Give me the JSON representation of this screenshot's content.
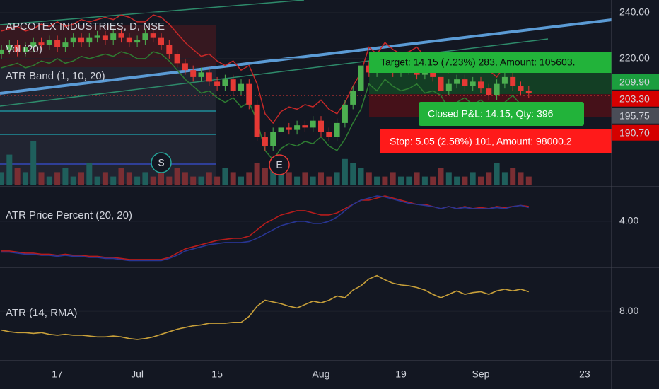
{
  "chart_data": [
    {
      "type": "candlestick",
      "title": "APCOTEX INDUSTRIES, D, NSE",
      "indicators": [
        "Vol (20)",
        "ATR Band (1, 10, 20)"
      ],
      "categories": [
        null,
        null,
        null,
        null,
        null,
        null,
        null,
        "17",
        null,
        null,
        null,
        null,
        null,
        null,
        null,
        null,
        null,
        "Jul",
        null,
        null,
        null,
        null,
        null,
        null,
        null,
        null,
        null,
        "15",
        null,
        null,
        null,
        null,
        null,
        null,
        null,
        null,
        null,
        null,
        null,
        null,
        "Aug",
        null,
        null,
        null,
        null,
        null,
        null,
        null,
        null,
        null,
        "19",
        null,
        null,
        null,
        null,
        null,
        null,
        null,
        null,
        null,
        "Sep",
        null,
        null,
        null,
        null,
        null,
        null,
        null,
        null,
        null,
        null,
        null,
        null,
        "23"
      ],
      "open": [
        222,
        224,
        226,
        223,
        225,
        227,
        226,
        228,
        225,
        227,
        229,
        227,
        229,
        230,
        228,
        231,
        229,
        227,
        228,
        231,
        229,
        226,
        222,
        218,
        215,
        212,
        214,
        210,
        208,
        211,
        206,
        209,
        200,
        186,
        182,
        188,
        190,
        189,
        191,
        190,
        193,
        188,
        186,
        192,
        200,
        206,
        217,
        214,
        219,
        216,
        214,
        215,
        217,
        213,
        214,
        212,
        206,
        209,
        211,
        208,
        210,
        207,
        204,
        209,
        212,
        208,
        206,
        null,
        null,
        null,
        null,
        null,
        null,
        null
      ],
      "high": [
        226,
        228,
        228,
        227,
        229,
        229,
        230,
        230,
        229,
        231,
        231,
        231,
        232,
        232,
        233,
        233,
        231,
        230,
        233,
        233,
        231,
        228,
        224,
        220,
        217,
        216,
        216,
        212,
        213,
        213,
        211,
        211,
        202,
        188,
        190,
        192,
        192,
        193,
        193,
        195,
        195,
        190,
        194,
        202,
        208,
        219,
        219,
        221,
        221,
        218,
        217,
        219,
        219,
        216,
        216,
        214,
        211,
        213,
        213,
        212,
        212,
        209,
        211,
        214,
        214,
        210,
        208,
        null,
        null,
        null,
        null,
        null,
        null,
        null
      ],
      "low": [
        220,
        222,
        221,
        221,
        223,
        224,
        224,
        223,
        223,
        225,
        225,
        225,
        227,
        226,
        226,
        227,
        225,
        225,
        226,
        227,
        224,
        220,
        216,
        213,
        210,
        210,
        208,
        206,
        206,
        204,
        204,
        198,
        184,
        180,
        180,
        186,
        187,
        187,
        188,
        188,
        186,
        184,
        184,
        190,
        198,
        204,
        212,
        212,
        214,
        212,
        212,
        213,
        211,
        211,
        210,
        204,
        204,
        207,
        206,
        206,
        205,
        202,
        202,
        207,
        206,
        204,
        203,
        null,
        null,
        null,
        null,
        null,
        null,
        null
      ],
      "close": [
        224,
        226,
        223,
        225,
        227,
        226,
        228,
        225,
        227,
        229,
        227,
        229,
        230,
        228,
        231,
        229,
        227,
        228,
        231,
        229,
        226,
        222,
        218,
        215,
        212,
        214,
        210,
        208,
        211,
        206,
        209,
        200,
        186,
        182,
        188,
        190,
        189,
        191,
        190,
        193,
        188,
        186,
        192,
        200,
        206,
        217,
        214,
        219,
        216,
        214,
        215,
        217,
        213,
        214,
        212,
        206,
        209,
        211,
        208,
        210,
        207,
        204,
        209,
        212,
        208,
        206,
        205,
        null,
        null,
        null,
        null,
        null,
        null,
        null
      ],
      "volume": [
        3,
        7,
        4,
        3,
        10,
        3,
        2,
        3,
        4,
        2,
        3,
        5,
        2,
        3,
        2,
        4,
        3,
        2,
        3,
        2,
        3,
        2,
        4,
        3,
        2,
        2,
        3,
        2,
        4,
        3,
        2,
        3,
        5,
        4,
        5,
        3,
        3,
        2,
        3,
        2,
        3,
        2,
        3,
        6,
        5,
        4,
        3,
        2,
        2,
        3,
        2,
        2,
        3,
        2,
        2,
        4,
        3,
        2,
        2,
        3,
        2,
        3,
        5,
        3,
        4,
        3,
        2,
        null,
        null,
        null,
        null,
        null,
        null,
        null
      ],
      "vlim": [
        0,
        10
      ],
      "band_upper": [
        232,
        233,
        234,
        232,
        233,
        235,
        234,
        236,
        234,
        235,
        237,
        236,
        237,
        238,
        237,
        239,
        238,
        236,
        236,
        239,
        238,
        235,
        231,
        227,
        224,
        221,
        222,
        219,
        217,
        219,
        215,
        217,
        209,
        196,
        192,
        197,
        199,
        198,
        200,
        199,
        202,
        198,
        196,
        201,
        208,
        214,
        225,
        222,
        227,
        224,
        222,
        223,
        225,
        221,
        222,
        220,
        214,
        217,
        219,
        216,
        218,
        215,
        212,
        217,
        220,
        216,
        214,
        null,
        null,
        null,
        null,
        null,
        null,
        null
      ],
      "band_lower": [
        216,
        217,
        218,
        216,
        217,
        219,
        218,
        220,
        218,
        219,
        221,
        220,
        221,
        222,
        221,
        223,
        222,
        220,
        220,
        223,
        222,
        219,
        215,
        211,
        208,
        205,
        206,
        203,
        201,
        203,
        199,
        201,
        193,
        180,
        176,
        181,
        183,
        182,
        184,
        183,
        186,
        182,
        180,
        185,
        192,
        198,
        209,
        206,
        211,
        208,
        206,
        207,
        209,
        205,
        206,
        204,
        198,
        201,
        203,
        200,
        202,
        199,
        196,
        201,
        204,
        200,
        198,
        null,
        null,
        null,
        null,
        null,
        null,
        null
      ],
      "up_color": "#4caf50",
      "down_color": "#e53935",
      "volume_up_color": "#1f5f5c",
      "volume_down_color": "#7a2e33",
      "band_upper_color": "#c62828",
      "band_lower_color": "#2e7d32",
      "ylim": [
        164.9,
        245.5
      ],
      "yticks": [
        {
          "value": 240,
          "label": "240.00"
        },
        {
          "value": 220,
          "label": "220.00"
        }
      ],
      "grid": true,
      "price_labels": [
        {
          "value": 209.9,
          "label": "209.90",
          "color": "#1b9e3e"
        },
        {
          "value": 203.3,
          "label": "203.30",
          "color": "#d50000"
        },
        {
          "value": 195.75,
          "label": "195.75",
          "color": "#4a4d57"
        },
        {
          "value": 190.7,
          "label": "190.70",
          "color": "#d50000"
        }
      ],
      "annotations": [
        "Target: 14.15 (7.23%) 283, Amount: 105603.",
        "Closed P&L: 14.15, Qty: 396",
        "Stop: 5.05 (2.58%) 101, Amount: 98000.2"
      ],
      "markers": [
        "S",
        "E"
      ]
    },
    {
      "type": "line",
      "title": "ATR Price Percent (20, 20)",
      "series": [
        {
          "color": "#b71c1c",
          "values": [
            2.6,
            2.6,
            2.55,
            2.5,
            2.5,
            2.45,
            2.45,
            2.4,
            2.45,
            2.4,
            2.4,
            2.35,
            2.35,
            2.3,
            2.3,
            2.25,
            2.2,
            2.2,
            2.2,
            2.2,
            2.2,
            2.3,
            2.5,
            2.7,
            2.8,
            2.9,
            3.0,
            3.1,
            3.15,
            3.2,
            3.2,
            3.3,
            3.6,
            3.9,
            4.1,
            4.3,
            4.4,
            4.5,
            4.5,
            4.4,
            4.3,
            4.3,
            4.4,
            4.6,
            4.8,
            5.0,
            5.0,
            5.1,
            5.2,
            5.1,
            5.0,
            4.9,
            4.8,
            4.8,
            4.7,
            4.6,
            4.7,
            4.6,
            4.7,
            4.6,
            4.65,
            4.6,
            4.7,
            4.65,
            4.7,
            4.75,
            4.7,
            null,
            null,
            null,
            null,
            null,
            null,
            null
          ]
        },
        {
          "color": "#283593",
          "values": [
            2.55,
            2.55,
            2.5,
            2.45,
            2.45,
            2.4,
            2.4,
            2.35,
            2.4,
            2.35,
            2.35,
            2.3,
            2.3,
            2.25,
            2.25,
            2.2,
            2.15,
            2.15,
            2.15,
            2.15,
            2.15,
            2.25,
            2.4,
            2.6,
            2.7,
            2.8,
            2.9,
            2.95,
            3.0,
            3.0,
            3.0,
            3.05,
            3.2,
            3.4,
            3.6,
            3.8,
            3.9,
            4.0,
            4.0,
            3.9,
            3.9,
            4.0,
            4.2,
            4.5,
            4.8,
            5.0,
            5.1,
            5.2,
            5.15,
            5.05,
            4.95,
            4.85,
            4.8,
            4.75,
            4.7,
            4.6,
            4.7,
            4.6,
            4.65,
            4.6,
            4.6,
            4.6,
            4.65,
            4.6,
            4.7,
            4.75,
            4.65,
            null,
            null,
            null,
            null,
            null,
            null,
            null
          ]
        }
      ],
      "ylim": [
        1.83,
        5.6
      ],
      "yticks": [
        {
          "value": 4,
          "label": "4.00"
        }
      ]
    },
    {
      "type": "line",
      "title": "ATR (14, RMA)",
      "series": [
        {
          "color": "#c8a03a",
          "values": [
            5.8,
            5.6,
            5.5,
            5.5,
            5.4,
            5.5,
            5.3,
            5.2,
            5.3,
            5.2,
            5.2,
            5.1,
            5.0,
            5.0,
            5.1,
            5.0,
            4.8,
            4.7,
            4.8,
            5.0,
            5.3,
            5.6,
            5.9,
            6.1,
            6.3,
            6.4,
            6.6,
            6.6,
            6.6,
            6.7,
            6.7,
            7.4,
            8.6,
            9.3,
            9.1,
            8.9,
            8.6,
            8.4,
            8.8,
            9.2,
            9.0,
            9.3,
            9.8,
            9.6,
            10.5,
            11.0,
            11.8,
            12.2,
            11.7,
            11.3,
            11.1,
            11.0,
            10.8,
            10.5,
            10.0,
            9.6,
            10.0,
            10.4,
            10.0,
            10.2,
            10.3,
            10.0,
            10.4,
            10.6,
            10.4,
            10.6,
            10.3,
            null,
            null,
            null,
            null,
            null,
            null,
            null
          ]
        }
      ],
      "ylim": [
        2.2,
        13
      ],
      "yticks": [
        {
          "value": 8,
          "label": "8.00"
        }
      ]
    }
  ]
}
